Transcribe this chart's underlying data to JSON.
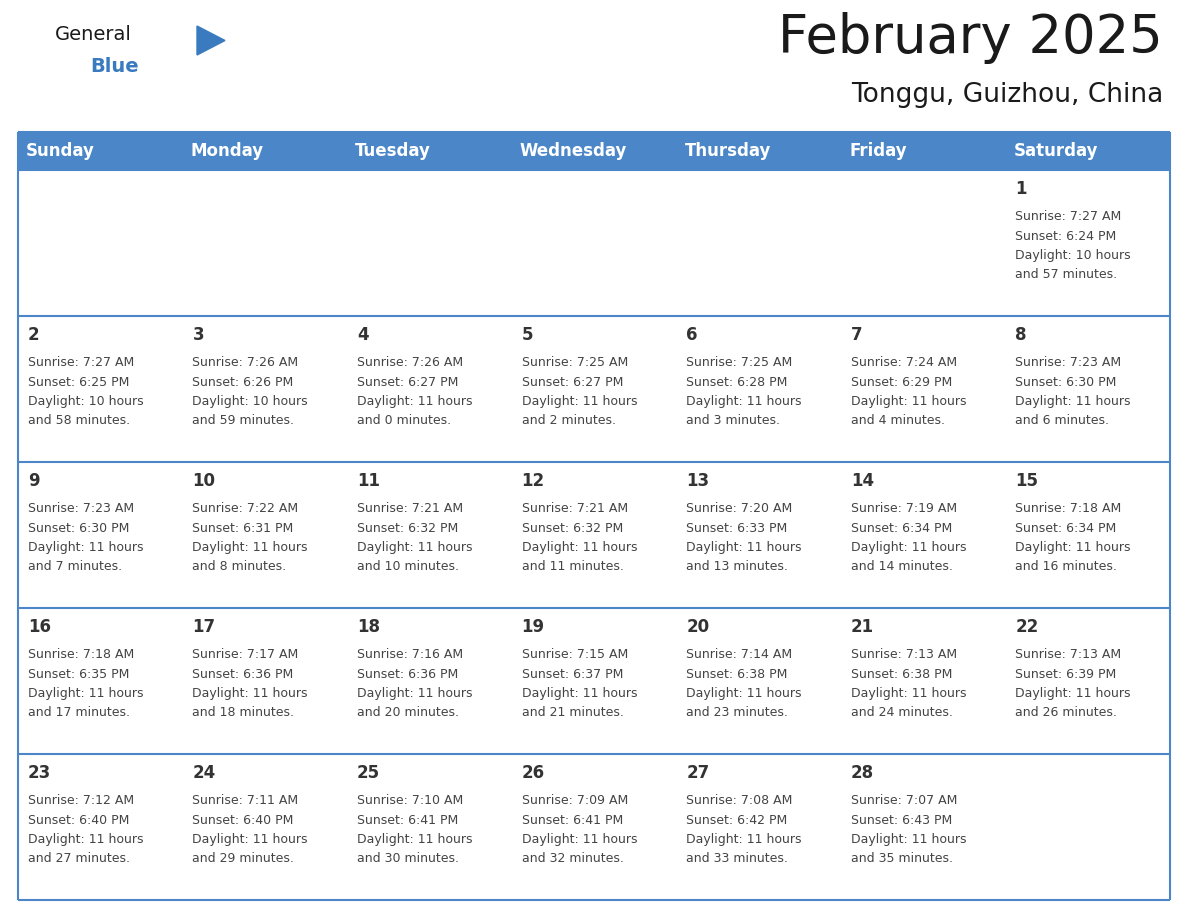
{
  "title": "February 2025",
  "subtitle": "Tonggu, Guizhou, China",
  "header_color": "#4a86c8",
  "header_text_color": "#ffffff",
  "cell_bg_color": "#f0f0f0",
  "cell_border_color": "#4a86c8",
  "separator_color": "#4a86c8",
  "day_headers": [
    "Sunday",
    "Monday",
    "Tuesday",
    "Wednesday",
    "Thursday",
    "Friday",
    "Saturday"
  ],
  "days": [
    {
      "day": 1,
      "col": 6,
      "row": 0,
      "sunrise": "7:27 AM",
      "sunset": "6:24 PM",
      "daylight_hours": 10,
      "daylight_minutes": 57
    },
    {
      "day": 2,
      "col": 0,
      "row": 1,
      "sunrise": "7:27 AM",
      "sunset": "6:25 PM",
      "daylight_hours": 10,
      "daylight_minutes": 58
    },
    {
      "day": 3,
      "col": 1,
      "row": 1,
      "sunrise": "7:26 AM",
      "sunset": "6:26 PM",
      "daylight_hours": 10,
      "daylight_minutes": 59
    },
    {
      "day": 4,
      "col": 2,
      "row": 1,
      "sunrise": "7:26 AM",
      "sunset": "6:27 PM",
      "daylight_hours": 11,
      "daylight_minutes": 0
    },
    {
      "day": 5,
      "col": 3,
      "row": 1,
      "sunrise": "7:25 AM",
      "sunset": "6:27 PM",
      "daylight_hours": 11,
      "daylight_minutes": 2
    },
    {
      "day": 6,
      "col": 4,
      "row": 1,
      "sunrise": "7:25 AM",
      "sunset": "6:28 PM",
      "daylight_hours": 11,
      "daylight_minutes": 3
    },
    {
      "day": 7,
      "col": 5,
      "row": 1,
      "sunrise": "7:24 AM",
      "sunset": "6:29 PM",
      "daylight_hours": 11,
      "daylight_minutes": 4
    },
    {
      "day": 8,
      "col": 6,
      "row": 1,
      "sunrise": "7:23 AM",
      "sunset": "6:30 PM",
      "daylight_hours": 11,
      "daylight_minutes": 6
    },
    {
      "day": 9,
      "col": 0,
      "row": 2,
      "sunrise": "7:23 AM",
      "sunset": "6:30 PM",
      "daylight_hours": 11,
      "daylight_minutes": 7
    },
    {
      "day": 10,
      "col": 1,
      "row": 2,
      "sunrise": "7:22 AM",
      "sunset": "6:31 PM",
      "daylight_hours": 11,
      "daylight_minutes": 8
    },
    {
      "day": 11,
      "col": 2,
      "row": 2,
      "sunrise": "7:21 AM",
      "sunset": "6:32 PM",
      "daylight_hours": 11,
      "daylight_minutes": 10
    },
    {
      "day": 12,
      "col": 3,
      "row": 2,
      "sunrise": "7:21 AM",
      "sunset": "6:32 PM",
      "daylight_hours": 11,
      "daylight_minutes": 11
    },
    {
      "day": 13,
      "col": 4,
      "row": 2,
      "sunrise": "7:20 AM",
      "sunset": "6:33 PM",
      "daylight_hours": 11,
      "daylight_minutes": 13
    },
    {
      "day": 14,
      "col": 5,
      "row": 2,
      "sunrise": "7:19 AM",
      "sunset": "6:34 PM",
      "daylight_hours": 11,
      "daylight_minutes": 14
    },
    {
      "day": 15,
      "col": 6,
      "row": 2,
      "sunrise": "7:18 AM",
      "sunset": "6:34 PM",
      "daylight_hours": 11,
      "daylight_minutes": 16
    },
    {
      "day": 16,
      "col": 0,
      "row": 3,
      "sunrise": "7:18 AM",
      "sunset": "6:35 PM",
      "daylight_hours": 11,
      "daylight_minutes": 17
    },
    {
      "day": 17,
      "col": 1,
      "row": 3,
      "sunrise": "7:17 AM",
      "sunset": "6:36 PM",
      "daylight_hours": 11,
      "daylight_minutes": 18
    },
    {
      "day": 18,
      "col": 2,
      "row": 3,
      "sunrise": "7:16 AM",
      "sunset": "6:36 PM",
      "daylight_hours": 11,
      "daylight_minutes": 20
    },
    {
      "day": 19,
      "col": 3,
      "row": 3,
      "sunrise": "7:15 AM",
      "sunset": "6:37 PM",
      "daylight_hours": 11,
      "daylight_minutes": 21
    },
    {
      "day": 20,
      "col": 4,
      "row": 3,
      "sunrise": "7:14 AM",
      "sunset": "6:38 PM",
      "daylight_hours": 11,
      "daylight_minutes": 23
    },
    {
      "day": 21,
      "col": 5,
      "row": 3,
      "sunrise": "7:13 AM",
      "sunset": "6:38 PM",
      "daylight_hours": 11,
      "daylight_minutes": 24
    },
    {
      "day": 22,
      "col": 6,
      "row": 3,
      "sunrise": "7:13 AM",
      "sunset": "6:39 PM",
      "daylight_hours": 11,
      "daylight_minutes": 26
    },
    {
      "day": 23,
      "col": 0,
      "row": 4,
      "sunrise": "7:12 AM",
      "sunset": "6:40 PM",
      "daylight_hours": 11,
      "daylight_minutes": 27
    },
    {
      "day": 24,
      "col": 1,
      "row": 4,
      "sunrise": "7:11 AM",
      "sunset": "6:40 PM",
      "daylight_hours": 11,
      "daylight_minutes": 29
    },
    {
      "day": 25,
      "col": 2,
      "row": 4,
      "sunrise": "7:10 AM",
      "sunset": "6:41 PM",
      "daylight_hours": 11,
      "daylight_minutes": 30
    },
    {
      "day": 26,
      "col": 3,
      "row": 4,
      "sunrise": "7:09 AM",
      "sunset": "6:41 PM",
      "daylight_hours": 11,
      "daylight_minutes": 32
    },
    {
      "day": 27,
      "col": 4,
      "row": 4,
      "sunrise": "7:08 AM",
      "sunset": "6:42 PM",
      "daylight_hours": 11,
      "daylight_minutes": 33
    },
    {
      "day": 28,
      "col": 5,
      "row": 4,
      "sunrise": "7:07 AM",
      "sunset": "6:43 PM",
      "daylight_hours": 11,
      "daylight_minutes": 35
    }
  ],
  "num_rows": 5,
  "logo_general_color": "#1a1a1a",
  "logo_blue_color": "#3a7bbf",
  "title_fontsize": 38,
  "subtitle_fontsize": 19,
  "header_fontsize": 12,
  "day_number_fontsize": 12,
  "cell_text_fontsize": 9
}
